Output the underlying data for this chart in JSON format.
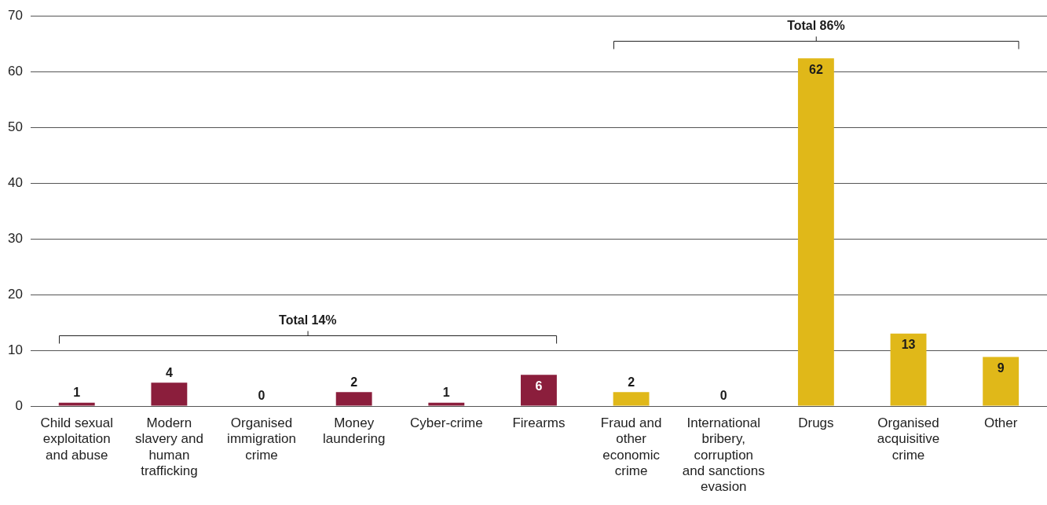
{
  "chart_data": {
    "type": "bar",
    "categories": [
      "Child sexual exploitation and abuse",
      "Modern slavery and human trafficking",
      "Organised immigration crime",
      "Money laundering",
      "Cyber-crime",
      "Firearms",
      "Fraud and other economic crime",
      "International bribery, corruption and sanctions evasion",
      "Drugs",
      "Organised acquisitive crime",
      "Other"
    ],
    "values": [
      0.6,
      4.2,
      0,
      2.5,
      0.6,
      5.6,
      2.5,
      0,
      62.4,
      13,
      8.8
    ],
    "value_labels": [
      "1",
      "4",
      "0",
      "2",
      "1",
      "6",
      "2",
      "0",
      "62",
      "13",
      "9"
    ],
    "colors": [
      "#8b1e3c",
      "#8b1e3c",
      "#8b1e3c",
      "#8b1e3c",
      "#8b1e3c",
      "#8b1e3c",
      "#e0b819",
      "#e0b819",
      "#e0b819",
      "#e0b819",
      "#e0b819"
    ],
    "ylim": [
      0,
      70
    ],
    "yticks": [
      0,
      10,
      20,
      30,
      40,
      50,
      60,
      70
    ],
    "grid": "y",
    "annotations": [
      "Total 14%",
      "Total 86%"
    ]
  }
}
